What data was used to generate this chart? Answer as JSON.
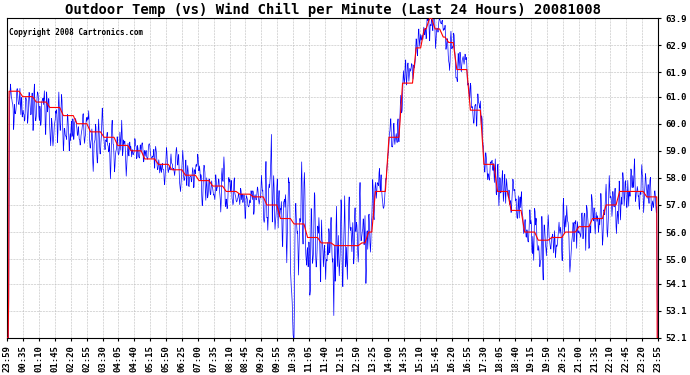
{
  "title": "Outdoor Temp (vs) Wind Chill per Minute (Last 24 Hours) 20081008",
  "copyright": "Copyright 2008 Cartronics.com",
  "background_color": "#ffffff",
  "grid_color": "#bbbbbb",
  "ymin": 52.1,
  "ymax": 63.9,
  "yticks": [
    52.1,
    53.1,
    54.1,
    55.0,
    56.0,
    57.0,
    58.0,
    59.0,
    60.0,
    61.0,
    61.9,
    62.9,
    63.9
  ],
  "xtick_labels": [
    "23:59",
    "00:35",
    "01:10",
    "01:45",
    "02:20",
    "02:55",
    "03:30",
    "04:05",
    "04:40",
    "05:15",
    "05:50",
    "06:25",
    "07:00",
    "07:35",
    "08:10",
    "08:45",
    "09:20",
    "09:55",
    "10:30",
    "11:05",
    "11:40",
    "12:15",
    "12:50",
    "13:25",
    "14:00",
    "14:35",
    "15:10",
    "15:45",
    "16:20",
    "16:55",
    "17:30",
    "18:05",
    "18:40",
    "19:15",
    "19:50",
    "20:25",
    "21:00",
    "21:35",
    "22:10",
    "22:45",
    "23:20",
    "23:55"
  ],
  "red_color": "#ff0000",
  "blue_color": "#0000ff",
  "title_fontsize": 10,
  "tick_fontsize": 6.5,
  "copyright_fontsize": 5.5
}
